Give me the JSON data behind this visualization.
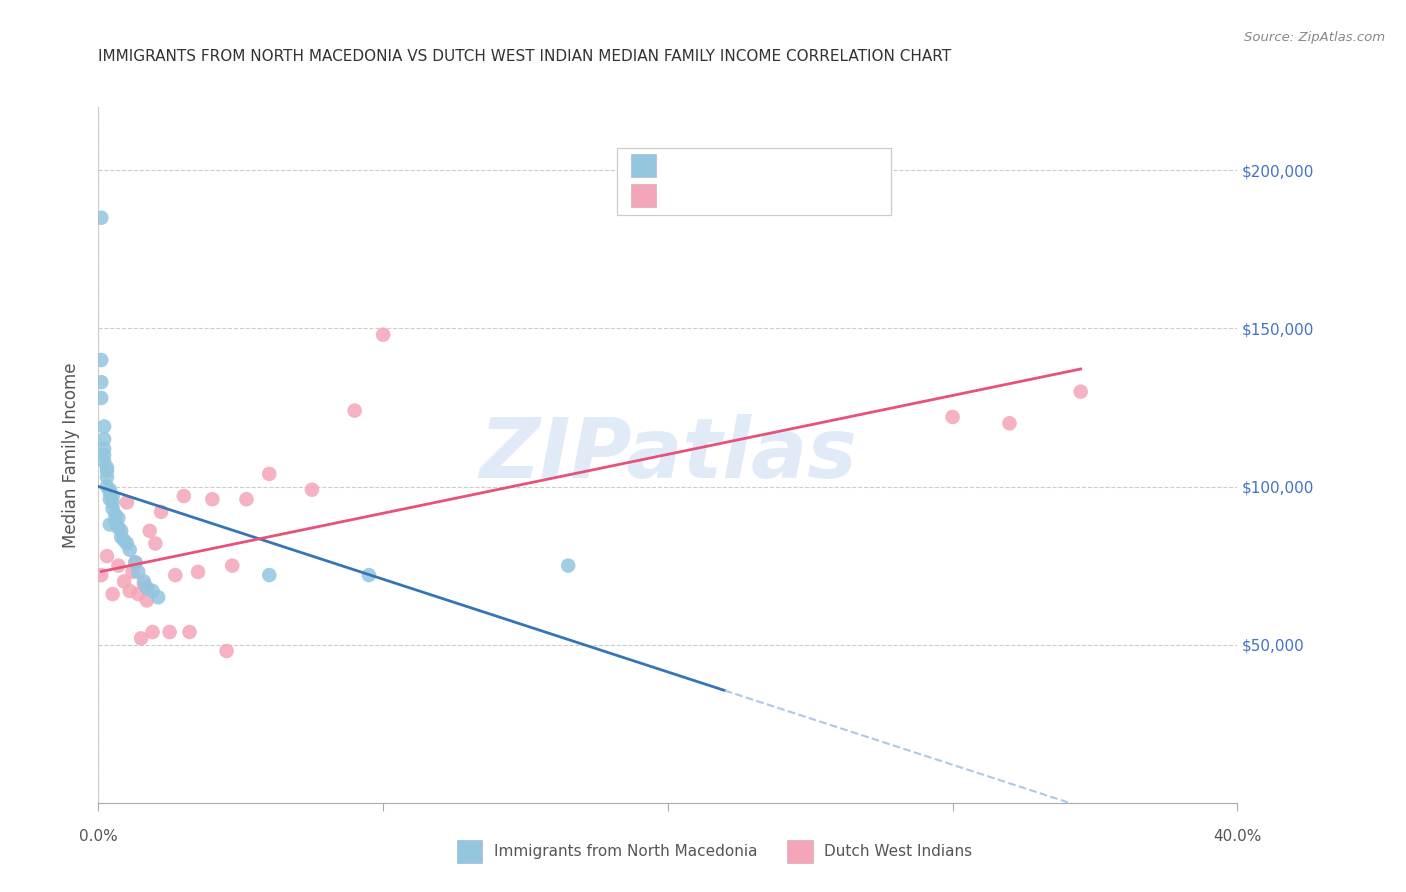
{
  "title": "IMMIGRANTS FROM NORTH MACEDONIA VS DUTCH WEST INDIAN MEDIAN FAMILY INCOME CORRELATION CHART",
  "source": "Source: ZipAtlas.com",
  "ylabel": "Median Family Income",
  "watermark": "ZIPatlas",
  "xlim": [
    0.0,
    0.4
  ],
  "ylim": [
    0,
    220000
  ],
  "blue_color": "#92c5de",
  "pink_color": "#f4a5b8",
  "blue_line_color": "#3575b5",
  "pink_line_color": "#e8517a",
  "blue_dashed_color": "#aec8e8",
  "grid_color": "#cccccc",
  "right_label_color": "#4472c4",
  "legend_text_color": "#4472c4",
  "source_color": "#888888",
  "title_color": "#333333",
  "blue_x": [
    0.001,
    0.001,
    0.001,
    0.001,
    0.002,
    0.002,
    0.002,
    0.002,
    0.002,
    0.003,
    0.003,
    0.003,
    0.003,
    0.004,
    0.004,
    0.004,
    0.004,
    0.005,
    0.005,
    0.005,
    0.006,
    0.006,
    0.007,
    0.007,
    0.008,
    0.008,
    0.009,
    0.01,
    0.011,
    0.013,
    0.014,
    0.016,
    0.017,
    0.019,
    0.021,
    0.06,
    0.095,
    0.165
  ],
  "blue_y": [
    185000,
    140000,
    133000,
    128000,
    119000,
    115000,
    112000,
    110000,
    108000,
    106000,
    105000,
    103000,
    100000,
    99000,
    98000,
    96000,
    88000,
    97000,
    95000,
    93000,
    91000,
    89000,
    90000,
    87000,
    86000,
    84000,
    83000,
    82000,
    80000,
    76000,
    73000,
    70000,
    68000,
    67000,
    65000,
    72000,
    72000,
    75000
  ],
  "pink_x": [
    0.001,
    0.003,
    0.005,
    0.007,
    0.009,
    0.01,
    0.011,
    0.012,
    0.013,
    0.014,
    0.015,
    0.016,
    0.017,
    0.018,
    0.019,
    0.02,
    0.022,
    0.025,
    0.027,
    0.03,
    0.032,
    0.035,
    0.04,
    0.045,
    0.047,
    0.052,
    0.06,
    0.075,
    0.09,
    0.1,
    0.3,
    0.32,
    0.345
  ],
  "pink_y": [
    72000,
    78000,
    66000,
    75000,
    70000,
    95000,
    67000,
    73000,
    76000,
    66000,
    52000,
    69000,
    64000,
    86000,
    54000,
    82000,
    92000,
    54000,
    72000,
    97000,
    54000,
    73000,
    96000,
    48000,
    75000,
    96000,
    104000,
    99000,
    124000,
    148000,
    122000,
    120000,
    130000
  ]
}
